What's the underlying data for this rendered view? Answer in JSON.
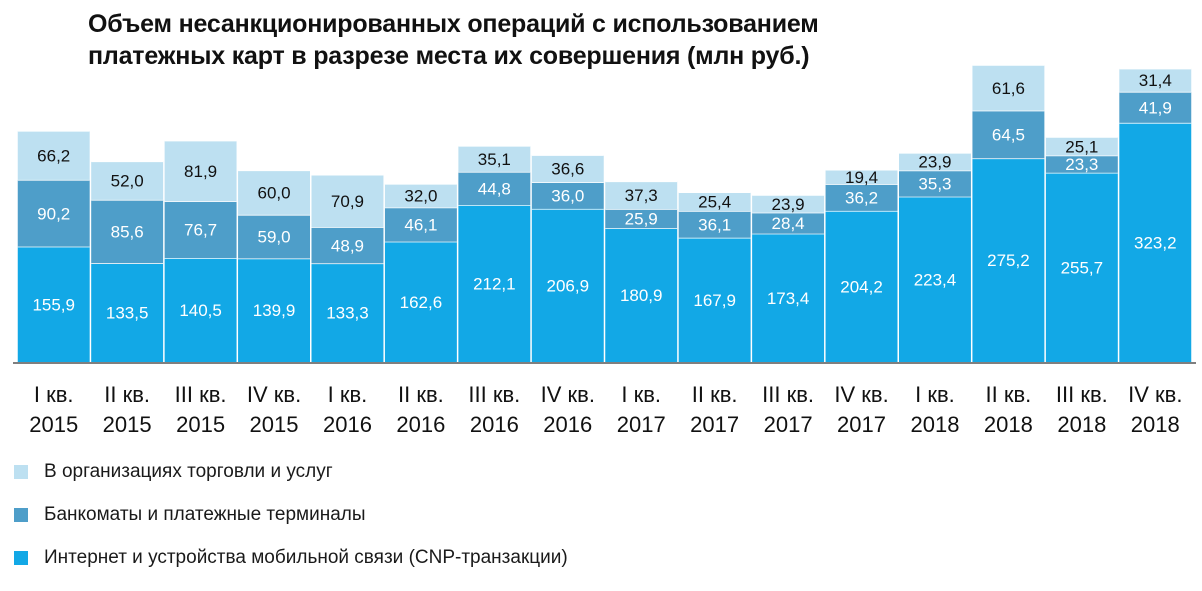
{
  "title": {
    "line1": "Объем несанкционированных операций с использованием",
    "line2": "платежных карт в разрезе места их совершения (млн руб.)"
  },
  "colors": {
    "trade": "#bde0f1",
    "atm": "#4e9ec9",
    "cnp": "#12a8e6",
    "axis": "#555555",
    "label_dark": "#111111",
    "label_light": "#ffffff"
  },
  "legend": [
    {
      "label": "В организациях торговли и услуг",
      "color": "#bde0f1"
    },
    {
      "label": "Банкоматы и платежные терминалы",
      "color": "#4e9ec9"
    },
    {
      "label": "Интернет и устройства мобильной связи (CNP-транзакции)",
      "color": "#12a8e6"
    }
  ],
  "chart_data": {
    "type": "bar",
    "stacked": true,
    "title": "Объем несанкционированных операций с использованием платежных карт в разрезе места их совершения (млн руб.)",
    "categories": [
      [
        "I кв.",
        "2015"
      ],
      [
        "II кв.",
        "2015"
      ],
      [
        "III кв.",
        "2015"
      ],
      [
        "IV кв.",
        "2015"
      ],
      [
        "I кв.",
        "2016"
      ],
      [
        "II кв.",
        "2016"
      ],
      [
        "III кв.",
        "2016"
      ],
      [
        "IV кв.",
        "2016"
      ],
      [
        "I кв.",
        "2017"
      ],
      [
        "II кв.",
        "2017"
      ],
      [
        "III кв.",
        "2017"
      ],
      [
        "IV кв.",
        "2017"
      ],
      [
        "I кв.",
        "2018"
      ],
      [
        "II кв.",
        "2018"
      ],
      [
        "III кв.",
        "2018"
      ],
      [
        "IV кв.",
        "2018"
      ]
    ],
    "series": [
      {
        "name": "Интернет и устройства мобильной связи (CNP-транзакции)",
        "color": "#12a8e6",
        "values": [
          155.9,
          133.5,
          140.5,
          139.9,
          133.3,
          162.6,
          212.1,
          206.9,
          180.9,
          167.9,
          173.4,
          204.2,
          223.4,
          275.2,
          255.7,
          323.2
        ],
        "labels": [
          "155,9",
          "133,5",
          "140,5",
          "139,9",
          "133,3",
          "162,6",
          "212,1",
          "206,9",
          "180,9",
          "167,9",
          "173,4",
          "204,2",
          "223,4",
          "275,2",
          "255,7",
          "323,2"
        ]
      },
      {
        "name": "Банкоматы и платежные терминалы",
        "color": "#4e9ec9",
        "values": [
          90.2,
          85.6,
          76.7,
          59.0,
          48.9,
          46.1,
          44.8,
          36.0,
          25.9,
          36.1,
          28.4,
          36.2,
          35.3,
          64.5,
          23.3,
          41.9
        ],
        "labels": [
          "90,2",
          "85,6",
          "76,7",
          "59,0",
          "48,9",
          "46,1",
          "44,8",
          "36,0",
          "25,9",
          "36,1",
          "28,4",
          "36,2",
          "35,3",
          "64,5",
          "23,3",
          "41,9"
        ]
      },
      {
        "name": "В организациях торговли и услуг",
        "color": "#bde0f1",
        "values": [
          66.2,
          52.0,
          81.9,
          60.0,
          70.9,
          32.0,
          35.1,
          36.6,
          37.3,
          25.4,
          23.9,
          19.4,
          23.9,
          61.6,
          25.1,
          31.4
        ],
        "labels": [
          "66,2",
          "52,0",
          "81,9",
          "60,0",
          "70,9",
          "32,0",
          "35,1",
          "36,6",
          "37,3",
          "25,4",
          "23,9",
          "19,4",
          "23,9",
          "61,6",
          "25,1",
          "31,4"
        ]
      }
    ],
    "ylim": [
      0,
      400
    ],
    "grid": false,
    "legend_position": "bottom-left"
  }
}
